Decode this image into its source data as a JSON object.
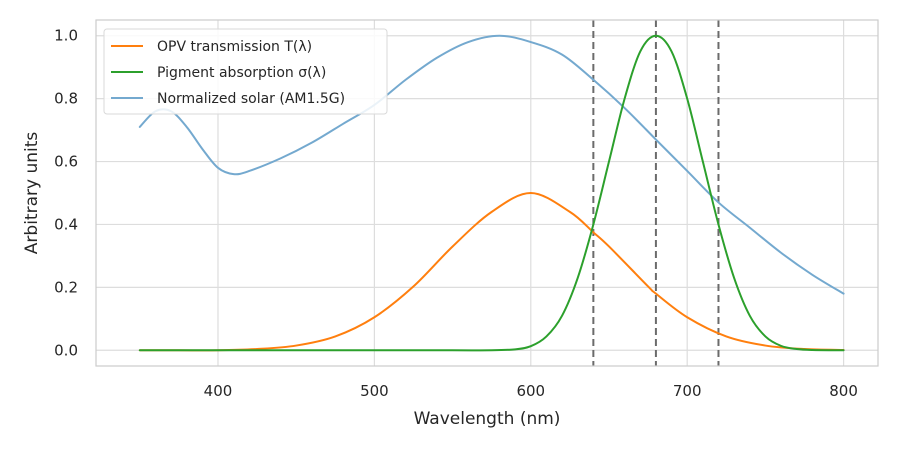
{
  "chart_data": {
    "type": "line",
    "title": "",
    "xlabel": "Wavelength (nm)",
    "ylabel": "Arbitrary units",
    "xlim": [
      322,
      822
    ],
    "ylim": [
      -0.05,
      1.05
    ],
    "xticks": [
      400,
      500,
      600,
      700,
      800
    ],
    "xtick_labels": [
      "400",
      "500",
      "600",
      "700",
      "800"
    ],
    "yticks": [
      0.0,
      0.2,
      0.4,
      0.6,
      0.8,
      1.0
    ],
    "ytick_labels": [
      "0.0",
      "0.2",
      "0.4",
      "0.6",
      "0.8",
      "1.0"
    ],
    "grid": true,
    "legend_position": "top-left",
    "vlines": {
      "x": [
        640,
        680,
        720
      ],
      "style": "dashed",
      "color": "#6b6b6b"
    },
    "series": [
      {
        "name": "OPV transmission T(λ)",
        "color": "#ff7f0e",
        "x": [
          350,
          375,
          400,
          425,
          450,
          475,
          500,
          525,
          550,
          575,
          600,
          625,
          640,
          650,
          675,
          680,
          700,
          725,
          750,
          775,
          800
        ],
        "y": [
          0.0,
          0.0,
          0.0,
          0.004,
          0.015,
          0.044,
          0.105,
          0.203,
          0.33,
          0.44,
          0.5,
          0.44,
          0.375,
          0.33,
          0.203,
          0.18,
          0.105,
          0.044,
          0.015,
          0.004,
          0.001
        ]
      },
      {
        "name": "Pigment absorption σ(λ)",
        "color": "#2ca02c",
        "x": [
          350,
          400,
          450,
          500,
          550,
          575,
          590,
          600,
          610,
          620,
          630,
          640,
          650,
          660,
          670,
          680,
          690,
          700,
          710,
          720,
          730,
          740,
          750,
          760,
          770,
          780,
          800
        ],
        "y": [
          0.0,
          0.0,
          0.0,
          0.0,
          0.0,
          0.0,
          0.003,
          0.013,
          0.044,
          0.11,
          0.23,
          0.4,
          0.6,
          0.8,
          0.95,
          1.0,
          0.95,
          0.8,
          0.6,
          0.4,
          0.23,
          0.11,
          0.044,
          0.014,
          0.004,
          0.001,
          0.0
        ]
      },
      {
        "name": "Normalized solar (AM1.5G)",
        "color": "#74a9cf",
        "x": [
          350,
          360,
          370,
          380,
          390,
          400,
          410,
          420,
          440,
          460,
          480,
          500,
          520,
          540,
          560,
          580,
          600,
          620,
          640,
          660,
          680,
          700,
          720,
          740,
          760,
          780,
          800
        ],
        "y": [
          0.71,
          0.76,
          0.76,
          0.71,
          0.64,
          0.58,
          0.56,
          0.57,
          0.61,
          0.66,
          0.72,
          0.78,
          0.86,
          0.93,
          0.98,
          1.0,
          0.98,
          0.94,
          0.86,
          0.77,
          0.67,
          0.57,
          0.47,
          0.39,
          0.31,
          0.24,
          0.18
        ]
      }
    ]
  }
}
